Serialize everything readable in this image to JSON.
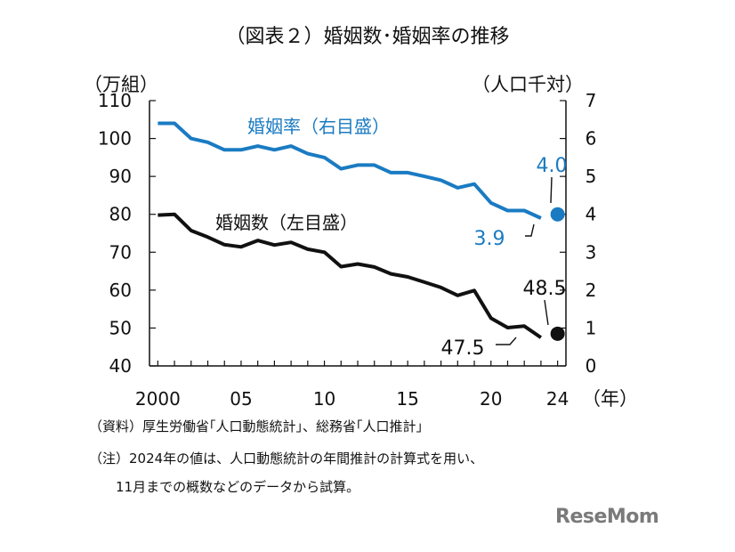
{
  "chart_data": {
    "type": "line",
    "title": "（図表２）婚姻数･婚姻率の推移",
    "y_left_label": "（万組）",
    "y_right_label": "（人口千対）",
    "x_unit_label": "（年）",
    "y_left_lim": [
      40,
      110
    ],
    "y_right_lim": [
      0,
      7
    ],
    "y_left_ticks": [
      "40",
      "50",
      "60",
      "70",
      "80",
      "90",
      "100",
      "110"
    ],
    "y_right_ticks": [
      "0",
      "1",
      "2",
      "3",
      "4",
      "5",
      "6",
      "7"
    ],
    "x_tick_labels": [
      {
        "year": 2000,
        "label": "2000"
      },
      {
        "year": 2005,
        "label": "05"
      },
      {
        "year": 2010,
        "label": "10"
      },
      {
        "year": 2015,
        "label": "15"
      },
      {
        "year": 2020,
        "label": "20"
      },
      {
        "year": 2024,
        "label": "24"
      }
    ],
    "x_range": [
      1999.5,
      2024.5
    ],
    "series": [
      {
        "name": "婚姻率（右目盛）",
        "axis": "right",
        "color": "#1a7bc2",
        "x": [
          2000,
          2001,
          2002,
          2003,
          2004,
          2005,
          2006,
          2007,
          2008,
          2009,
          2010,
          2011,
          2012,
          2013,
          2014,
          2015,
          2016,
          2017,
          2018,
          2019,
          2020,
          2021,
          2022,
          2023
        ],
        "values": [
          6.4,
          6.4,
          6.0,
          5.9,
          5.7,
          5.7,
          5.8,
          5.7,
          5.8,
          5.6,
          5.5,
          5.2,
          5.3,
          5.3,
          5.1,
          5.1,
          5.0,
          4.9,
          4.7,
          4.8,
          4.3,
          4.1,
          4.1,
          3.9
        ],
        "estimate": {
          "year": 2024,
          "value": 4.0,
          "label": "4.0"
        },
        "last_label": "3.9"
      },
      {
        "name": "婚姻数（左目盛）",
        "axis": "left",
        "color": "#111111",
        "x": [
          2000,
          2001,
          2002,
          2003,
          2004,
          2005,
          2006,
          2007,
          2008,
          2009,
          2010,
          2011,
          2012,
          2013,
          2014,
          2015,
          2016,
          2017,
          2018,
          2019,
          2020,
          2021,
          2022,
          2023
        ],
        "values": [
          79.8,
          80.0,
          75.7,
          74.0,
          72.0,
          71.4,
          73.1,
          71.9,
          72.6,
          70.8,
          70.0,
          66.2,
          66.9,
          66.1,
          64.3,
          63.5,
          62.1,
          60.7,
          58.6,
          59.9,
          52.6,
          50.1,
          50.5,
          47.5
        ],
        "estimate": {
          "year": 2024,
          "value": 48.5,
          "label": "48.5"
        },
        "last_label": "47.5"
      }
    ]
  },
  "notes": {
    "source": "（資料）厚生労働省｢人口動態統計｣、総務省｢人口推計｣",
    "note_line1": "（注）2024年の値は、人口動態統計の年間推計の計算式を用い、",
    "note_line2": "11月までの概数などのデータから試算。"
  },
  "watermark": "ReseMom"
}
